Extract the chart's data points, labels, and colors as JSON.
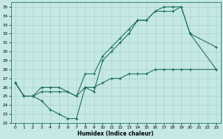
{
  "xlabel": "Humidex (Indice chaleur)",
  "bg_color": "#c5e8e5",
  "grid_color": "#a8d0cc",
  "line_color": "#1a6b5a",
  "xlim": [
    -0.5,
    23.5
  ],
  "ylim": [
    22,
    35.5
  ],
  "yticks": [
    22,
    23,
    24,
    25,
    26,
    27,
    28,
    29,
    30,
    31,
    32,
    33,
    34,
    35
  ],
  "xticks": [
    0,
    1,
    2,
    3,
    4,
    5,
    6,
    7,
    8,
    9,
    10,
    11,
    12,
    13,
    14,
    15,
    16,
    17,
    18,
    19,
    20,
    21,
    22,
    23
  ],
  "line1_x": [
    0,
    1,
    2,
    3,
    4,
    5,
    6,
    7,
    8,
    9,
    10,
    11,
    12,
    13,
    14,
    15,
    16,
    17,
    18,
    19,
    20,
    23
  ],
  "line1_y": [
    26.5,
    25.0,
    25.0,
    24.5,
    23.5,
    23.0,
    22.5,
    22.5,
    26.0,
    25.5,
    29.0,
    30.0,
    31.0,
    32.0,
    33.5,
    33.5,
    34.5,
    34.5,
    34.5,
    35.0,
    32.0,
    28.0
  ],
  "line2_x": [
    0,
    1,
    2,
    3,
    4,
    5,
    6,
    7,
    8,
    9,
    10,
    11,
    12,
    13,
    14,
    15,
    16,
    17,
    18,
    19,
    20,
    23
  ],
  "line2_y": [
    26.5,
    25.0,
    25.0,
    26.0,
    26.0,
    26.0,
    25.5,
    25.0,
    27.5,
    27.5,
    29.5,
    30.5,
    31.5,
    32.5,
    33.5,
    33.5,
    34.5,
    35.0,
    35.0,
    35.0,
    32.0,
    30.5
  ],
  "line3_x": [
    0,
    1,
    2,
    3,
    4,
    5,
    6,
    7,
    8,
    9,
    10,
    11,
    12,
    13,
    14,
    15,
    16,
    17,
    18,
    19,
    20,
    23
  ],
  "line3_y": [
    26.5,
    25.0,
    25.0,
    25.5,
    25.5,
    25.5,
    25.5,
    25.0,
    26.0,
    26.0,
    26.5,
    27.0,
    27.0,
    27.5,
    27.5,
    27.5,
    28.0,
    28.0,
    28.0,
    28.0,
    28.0,
    28.0
  ]
}
